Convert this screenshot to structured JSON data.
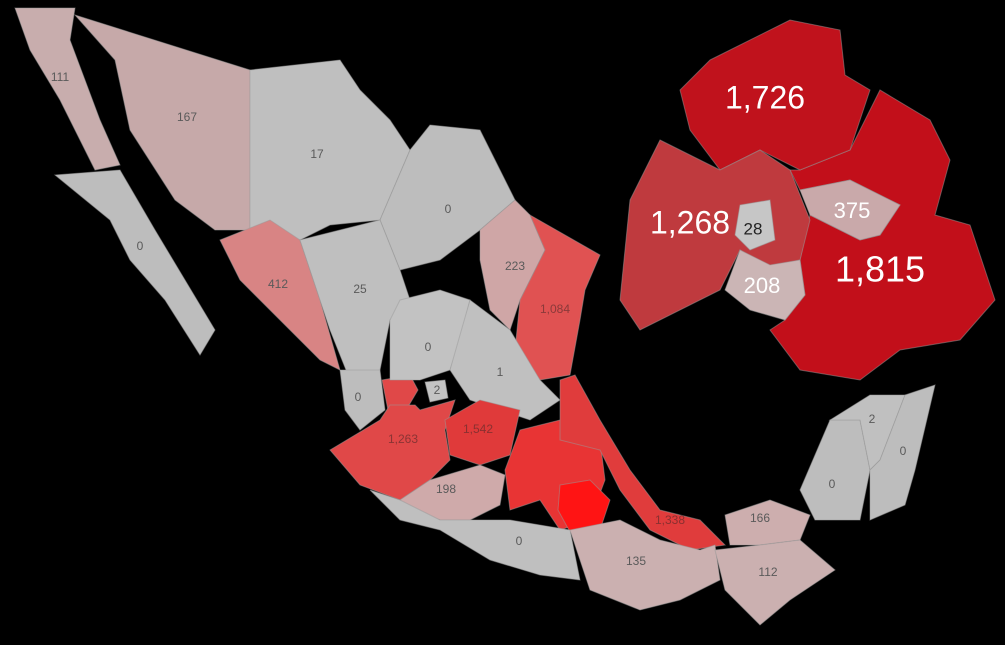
{
  "regions": [
    {
      "label": "111",
      "color": "#c8adad",
      "label_color": "#5a5a5a"
    },
    {
      "label": "167",
      "color": "#c6a9a9",
      "label_color": "#5a5a5a"
    },
    {
      "label": "17",
      "color": "#bfbfbf",
      "label_color": "#5a5a5a"
    },
    {
      "label": "0",
      "color": "#bdbdbd",
      "label_color": "#5a5a5a"
    },
    {
      "label": "0",
      "color": "#bdbdbd",
      "label_color": "#5a5a5a"
    },
    {
      "label": "223",
      "color": "#cfa6a6",
      "label_color": "#5a5a5a"
    },
    {
      "label": "412",
      "color": "#d88484",
      "label_color": "#5a5a5a"
    },
    {
      "label": "25",
      "color": "#bfbfbf",
      "label_color": "#5a5a5a"
    },
    {
      "label": "1,084",
      "color": "#e05252",
      "label_color": "#8a3a3a"
    },
    {
      "label": "0",
      "color": "#c2c2c2",
      "label_color": "#5a5a5a"
    },
    {
      "label": "1",
      "color": "#c0c0c0",
      "label_color": "#5a5a5a"
    },
    {
      "label": "0",
      "color": "#bdbdbd",
      "label_color": "#5a5a5a"
    },
    {
      "label": "2",
      "color": "#c4c4c4",
      "label_color": "#5a5a5a"
    },
    {
      "label": "1,263",
      "color": "#e04848",
      "label_color": "#8a3434"
    },
    {
      "label": "1,542",
      "color": "#e03a3a",
      "label_color": "#8a3030"
    },
    {
      "label": "198",
      "color": "#cfaaaa",
      "label_color": "#5a5a5a"
    },
    {
      "label": "0",
      "color": "#bfbfbf",
      "label_color": "#5a5a5a"
    },
    {
      "label": "1,338",
      "color": "#e03c3c",
      "label_color": "#8a3030"
    },
    {
      "label": "135",
      "color": "#cbb0b0",
      "label_color": "#5a5a5a"
    },
    {
      "label": "166",
      "color": "#cdaeae",
      "label_color": "#5a5a5a"
    },
    {
      "label": "112",
      "color": "#cbb0b0",
      "label_color": "#5a5a5a"
    },
    {
      "label": "0",
      "color": "#bdbdbd",
      "label_color": "#5a5a5a"
    },
    {
      "label": "2",
      "color": "#c0c0c0",
      "label_color": "#5a5a5a"
    },
    {
      "label": "0",
      "color": "#bdbdbd",
      "label_color": "#5a5a5a"
    },
    {
      "label": "1,726",
      "color": "#c0121c",
      "label_color": "#ffffff"
    },
    {
      "label": "1,268",
      "color": "#bf3a3e",
      "label_color": "#ffffff"
    },
    {
      "label": "28",
      "color": "#c6c6c6",
      "label_color": "#222222"
    },
    {
      "label": "375",
      "color": "#c9a9aa",
      "label_color": "#ffffff"
    },
    {
      "label": "208",
      "color": "#cbb5b5",
      "label_color": "#ffffff"
    },
    {
      "label": "1,815",
      "color": "#c20f1a",
      "label_color": "#ffffff"
    }
  ]
}
